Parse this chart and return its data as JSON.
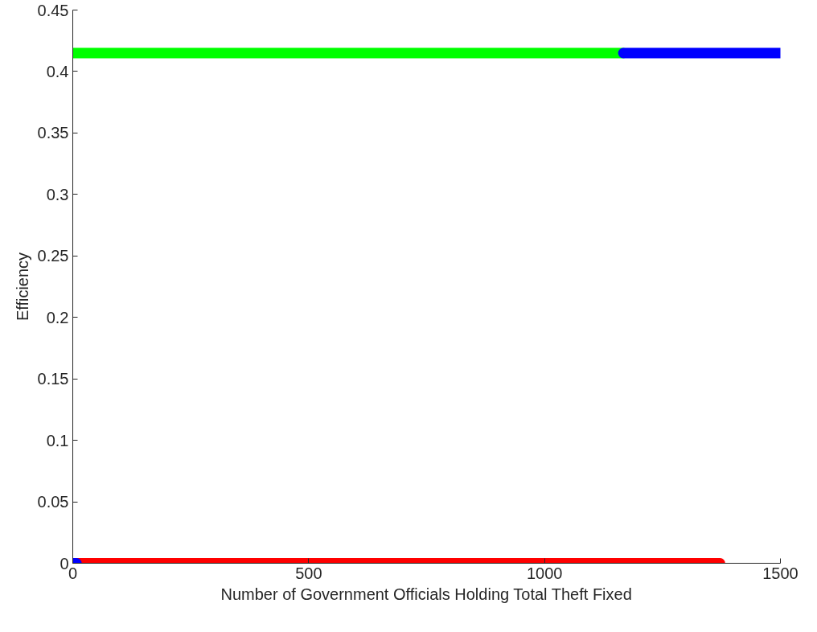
{
  "chart_data": {
    "type": "line",
    "xlabel": "Number of Government Officials Holding Total Theft Fixed",
    "ylabel": "Efficiency",
    "xlim": [
      0,
      1500
    ],
    "ylim": [
      0,
      0.45
    ],
    "xticks": [
      0,
      500,
      1000,
      1500
    ],
    "yticks": [
      0,
      0.05,
      0.1,
      0.15,
      0.2,
      0.25,
      0.3,
      0.35,
      0.4,
      0.45
    ],
    "grid": false,
    "marker": "none",
    "line_style": "solid",
    "series": [
      {
        "color": "#00ff00",
        "x": [
          0,
          1167
        ],
        "values": [
          0.415,
          0.415
        ]
      },
      {
        "color": "#0000ff",
        "x": [
          1167,
          1500
        ],
        "values": [
          0.415,
          0.415
        ]
      },
      {
        "color": "#ff0000",
        "x": [
          8,
          1372
        ],
        "values": [
          0,
          0
        ]
      },
      {
        "color": "#0000ff",
        "x": [
          0,
          8
        ],
        "values": [
          0,
          0
        ]
      }
    ]
  }
}
